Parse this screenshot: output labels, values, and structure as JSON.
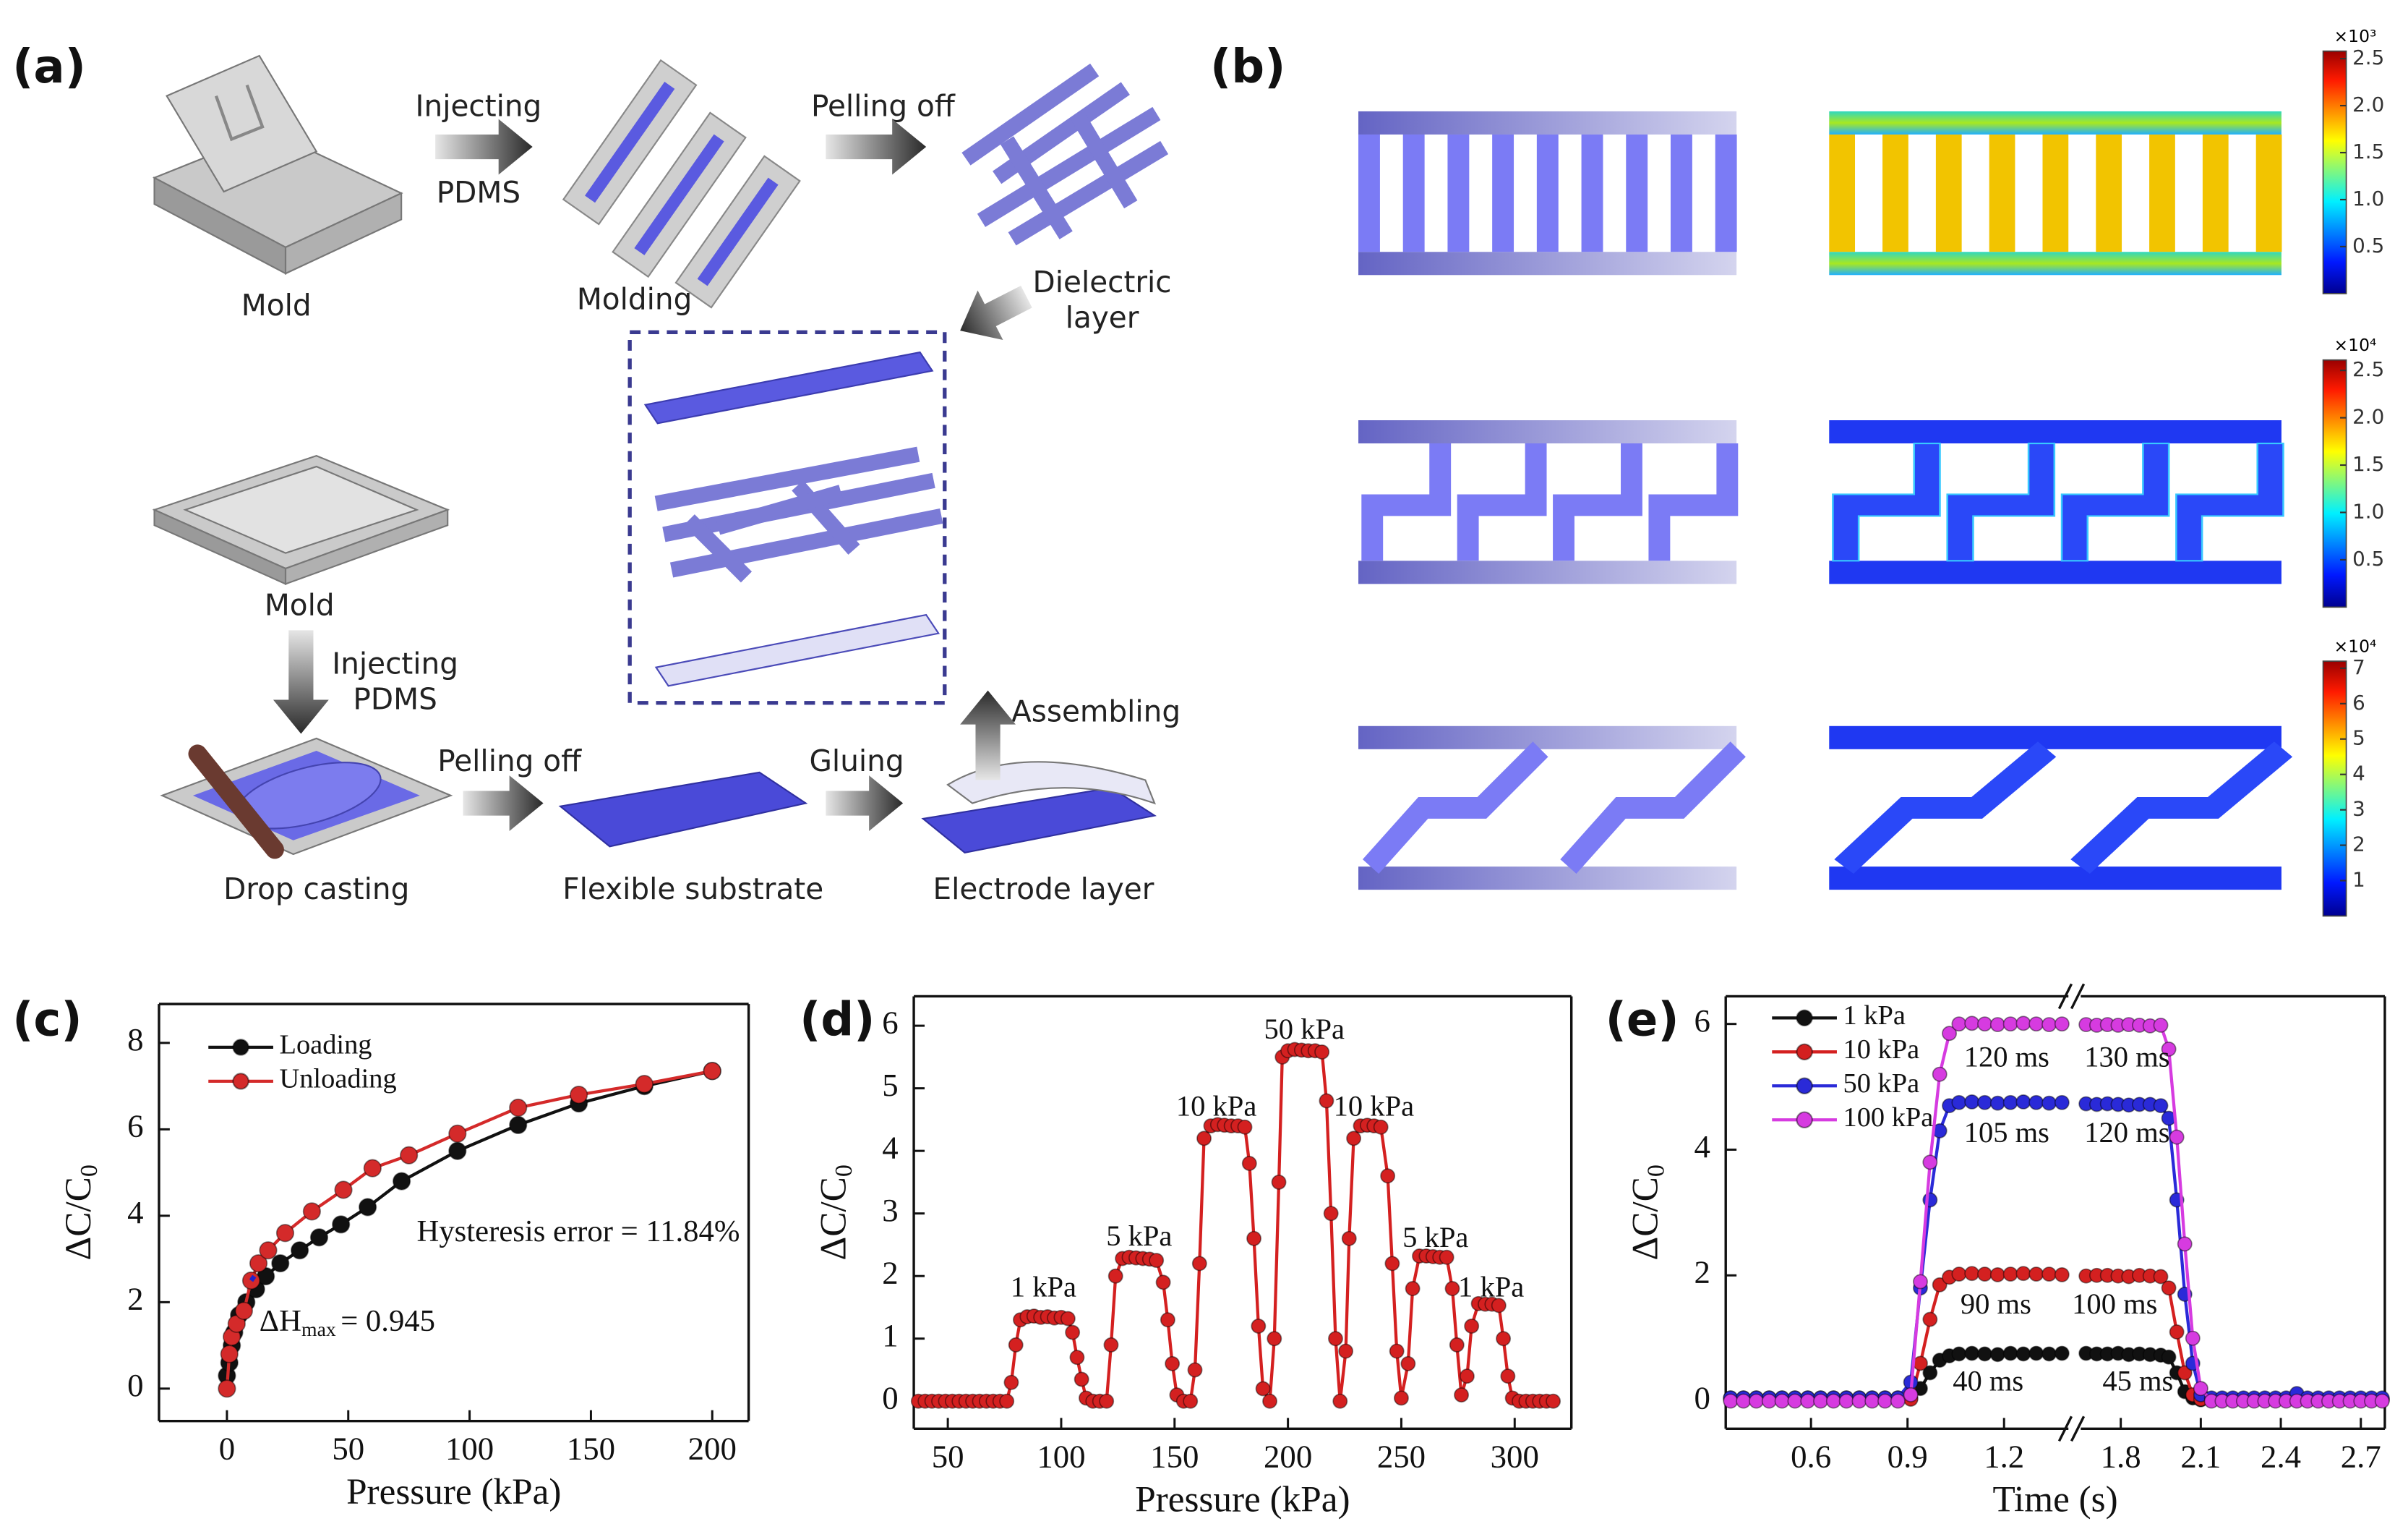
{
  "panels": [
    "(a)",
    "(b)",
    "(c)",
    "(d)",
    "(e)"
  ],
  "diagram_a": {
    "labels": [
      "Injecting",
      "PDMS",
      "Pelling off",
      "Mold",
      "Molding",
      "Dielectric",
      "layer",
      "Mold",
      "Injecting",
      "PDMS",
      "Assembling",
      "Pelling off",
      "Gluing",
      "Drop casting",
      "Flexible substrate",
      "Electrode layer"
    ]
  },
  "colorbars": [
    {
      "multiplier": "×10³",
      "lim": [
        0,
        2.58
      ],
      "ticks": [
        2.5,
        {
          "value": 2,
          "label": "2.0"
        },
        1.5,
        {
          "value": 1,
          "label": "1.0"
        },
        0.5
      ]
    },
    {
      "multiplier": "×10⁴",
      "lim": [
        0,
        2.61
      ],
      "ticks": [
        2.5,
        {
          "value": 2,
          "label": "2.0"
        },
        1.5,
        {
          "value": 1,
          "label": "1.0"
        },
        0.5
      ]
    },
    {
      "multiplier": "×10⁴",
      "lim": [
        0,
        7.2
      ],
      "ticks": [
        7,
        6,
        5,
        4,
        3,
        2,
        1
      ]
    }
  ],
  "chart_data": [
    {
      "type": "line",
      "xlabel": "Pressure (kPa)",
      "ylabel": "ΔC/C",
      "ylabel_sub": "0",
      "xlim": [
        -28,
        215
      ],
      "ylim": [
        -0.75,
        8.9
      ],
      "xticks": [
        0,
        50,
        100,
        150,
        200
      ],
      "yticks": [
        0,
        2,
        4,
        6,
        8
      ],
      "legend": "upper left",
      "series": [
        {
          "name": "Loading",
          "color": "#111111",
          "x": [
            0,
            1,
            2,
            3,
            5,
            8,
            12,
            16,
            22,
            30,
            38,
            47,
            58,
            72,
            95,
            120,
            145,
            172,
            200
          ],
          "values": [
            0.3,
            0.6,
            1.0,
            1.3,
            1.7,
            2.0,
            2.3,
            2.6,
            2.9,
            3.2,
            3.5,
            3.8,
            4.2,
            4.8,
            5.5,
            6.1,
            6.6,
            7.0,
            7.35
          ]
        },
        {
          "name": "Unloading",
          "color": "#d42a2a",
          "x": [
            0,
            1,
            2,
            4,
            7,
            10,
            13,
            17,
            24,
            35,
            48,
            60,
            75,
            95,
            120,
            145,
            172,
            200
          ],
          "values": [
            0,
            0.8,
            1.2,
            1.5,
            1.8,
            2.5,
            2.9,
            3.2,
            3.6,
            4.1,
            4.6,
            5.1,
            5.4,
            5.9,
            6.5,
            6.8,
            7.05,
            7.35
          ]
        }
      ],
      "annotations": [
        "Hysteresis error = 11.84%"
      ],
      "delta_h": {
        "symbol": "ΔH",
        "subscript": "max",
        "text": "= 0.945"
      }
    },
    {
      "type": "line",
      "xlabel": "Pressure (kPa)",
      "ylabel": "ΔC/C",
      "ylabel_sub": "0",
      "xlim": [
        35,
        325
      ],
      "ylim": [
        -0.44,
        6.47
      ],
      "xticks": [
        50,
        100,
        150,
        200,
        250,
        300
      ],
      "yticks": [
        0,
        1,
        2,
        3,
        4,
        5,
        6
      ],
      "x": [
        37,
        40,
        43,
        46,
        49,
        52,
        55,
        58,
        61,
        64,
        67,
        70,
        73,
        76,
        78,
        80,
        82,
        85,
        88,
        91,
        94,
        97,
        100,
        103,
        105,
        107,
        109,
        111,
        114,
        117,
        120,
        122,
        124,
        127,
        130,
        133,
        136,
        139,
        142,
        145,
        147,
        149,
        151,
        154,
        157,
        159,
        161,
        163,
        166,
        169,
        172,
        175,
        178,
        181,
        183,
        185,
        187,
        189,
        192,
        194,
        196,
        197.5,
        200,
        203,
        206,
        209,
        212,
        215,
        217,
        219,
        221,
        223,
        225.5,
        227,
        229,
        232,
        235,
        238,
        241,
        244,
        246,
        248,
        250,
        253,
        255,
        258,
        261,
        264,
        267,
        270,
        272.5,
        274.5,
        276.5,
        279,
        281,
        284,
        287,
        290,
        293,
        295,
        297,
        299,
        302,
        305,
        308,
        311,
        314,
        317
      ],
      "series": [
        {
          "color": "#d42020",
          "values": [
            0,
            0,
            0,
            0,
            0,
            0,
            0,
            0,
            0,
            0,
            0,
            0,
            0,
            0,
            0.3,
            0.9,
            1.3,
            1.35,
            1.36,
            1.34,
            1.35,
            1.33,
            1.34,
            1.32,
            1.1,
            0.7,
            0.35,
            0.05,
            0,
            0,
            0,
            0.9,
            2.0,
            2.28,
            2.3,
            2.29,
            2.28,
            2.27,
            2.25,
            1.9,
            1.3,
            0.6,
            0.1,
            0,
            0,
            0.5,
            2.2,
            4.2,
            4.4,
            4.42,
            4.41,
            4.4,
            4.4,
            4.38,
            3.8,
            2.6,
            1.2,
            0.2,
            0,
            1.0,
            3.5,
            5.5,
            5.6,
            5.62,
            5.61,
            5.6,
            5.6,
            5.58,
            4.8,
            3.0,
            1.0,
            0,
            0.8,
            2.6,
            4.2,
            4.4,
            4.41,
            4.4,
            4.38,
            3.6,
            2.2,
            0.8,
            0.05,
            0.6,
            1.8,
            2.32,
            2.32,
            2.31,
            2.3,
            2.3,
            1.8,
            0.9,
            0.1,
            0.4,
            1.2,
            1.56,
            1.55,
            1.55,
            1.53,
            1.0,
            0.4,
            0.05,
            0,
            0,
            0,
            0,
            0,
            0
          ]
        }
      ],
      "annotations": [
        "1 kPa",
        "5 kPa",
        "10 kPa",
        "50 kPa",
        "10 kPa",
        "5 kPa",
        "1 kPa"
      ]
    },
    {
      "type": "line",
      "xlabel": "Time (s)",
      "ylabel": "ΔC/C",
      "ylabel_sub": "0",
      "xlim_segments": [
        [
          0.335,
          1.4
        ],
        [
          1.65,
          2.79
        ]
      ],
      "ylim": [
        -0.44,
        6.44
      ],
      "xticks": [
        0.6,
        0.9,
        1.2,
        1.8,
        2.1,
        2.4,
        2.7
      ],
      "yticks": [
        0,
        2,
        4,
        6
      ],
      "legend": "upper left",
      "x": [
        0.35,
        0.39,
        0.43,
        0.47,
        0.51,
        0.55,
        0.59,
        0.63,
        0.67,
        0.71,
        0.75,
        0.79,
        0.83,
        0.87,
        0.91,
        0.94,
        0.97,
        1.0,
        1.03,
        1.06,
        1.1,
        1.14,
        1.18,
        1.22,
        1.26,
        1.3,
        1.34,
        1.38,
        1.67,
        1.71,
        1.75,
        1.79,
        1.83,
        1.87,
        1.91,
        1.95,
        1.98,
        2.01,
        2.04,
        2.07,
        2.1,
        2.14,
        2.18,
        2.22,
        2.26,
        2.3,
        2.34,
        2.38,
        2.42,
        2.46,
        2.5,
        2.54,
        2.58,
        2.62,
        2.66,
        2.7,
        2.74,
        2.78
      ],
      "series": [
        {
          "name": "1 kPa",
          "color": "#111111",
          "values": [
            0.05,
            0.05,
            0.05,
            0.05,
            0.05,
            0.05,
            0.05,
            0.05,
            0.05,
            0.05,
            0.05,
            0.05,
            0.05,
            0.05,
            0.05,
            0.2,
            0.45,
            0.65,
            0.72,
            0.75,
            0.76,
            0.75,
            0.74,
            0.76,
            0.75,
            0.76,
            0.75,
            0.76,
            0.76,
            0.75,
            0.75,
            0.76,
            0.74,
            0.75,
            0.74,
            0.73,
            0.7,
            0.45,
            0.15,
            0.05,
            0.02,
            0.02,
            0.02,
            0.02,
            0.02,
            0.02,
            0.02,
            0.02,
            0.02,
            0.02,
            0.02,
            0.02,
            0.02,
            0.02,
            0.02,
            0.02,
            0.02,
            0.02
          ]
        },
        {
          "name": "10 kPa",
          "color": "#d42020",
          "values": [
            0.03,
            0.03,
            0.03,
            0.03,
            0.03,
            0.03,
            0.03,
            0.03,
            0.03,
            0.03,
            0.03,
            0.03,
            0.03,
            0.03,
            0.03,
            0.6,
            1.3,
            1.85,
            1.97,
            2.02,
            2.03,
            2.02,
            2.01,
            2.02,
            2.03,
            2.02,
            2.02,
            2.01,
            1.99,
            2.0,
            2.0,
            1.99,
            1.98,
            2.0,
            1.99,
            1.98,
            1.8,
            1.1,
            0.45,
            0.1,
            0.03,
            0.03,
            0.03,
            0.03,
            0.03,
            0.03,
            0.03,
            0.03,
            0.03,
            0.03,
            0.03,
            0.03,
            0.03,
            0.03,
            0.03,
            0.03,
            0.03,
            0.03
          ]
        },
        {
          "name": "50 kPa",
          "color": "#2a2ad8",
          "values": [
            0.05,
            0.05,
            0.05,
            0.05,
            0.05,
            0.05,
            0.05,
            0.05,
            0.05,
            0.05,
            0.05,
            0.05,
            0.05,
            0.05,
            0.3,
            1.8,
            3.2,
            4.3,
            4.7,
            4.75,
            4.76,
            4.75,
            4.74,
            4.75,
            4.76,
            4.75,
            4.74,
            4.75,
            4.73,
            4.72,
            4.73,
            4.72,
            4.71,
            4.72,
            4.72,
            4.7,
            4.5,
            3.2,
            1.7,
            0.6,
            0.1,
            0.05,
            0.05,
            0.05,
            0.05,
            0.05,
            0.05,
            0.05,
            0.05,
            0.12,
            0.05,
            0.05,
            0.05,
            0.05,
            0.05,
            0.05,
            0.05,
            0.05
          ]
        },
        {
          "name": "100 kPa",
          "color": "#d63be0",
          "values": [
            0,
            0,
            0,
            0,
            0,
            0,
            0,
            0,
            0,
            0,
            0,
            0,
            0,
            0,
            0.1,
            1.9,
            3.8,
            5.2,
            5.85,
            6.0,
            6.01,
            6.0,
            5.99,
            6.0,
            6.01,
            6.0,
            5.99,
            6.0,
            5.99,
            5.98,
            5.99,
            5.98,
            5.99,
            5.98,
            5.97,
            5.98,
            5.6,
            4.2,
            2.5,
            1.0,
            0.2,
            0,
            0,
            0,
            0,
            0,
            0,
            0,
            0,
            0,
            0,
            0,
            0,
            0,
            0,
            0,
            0,
            0
          ]
        }
      ],
      "annotations": [
        "120 ms",
        "130 ms",
        "105 ms",
        "120 ms",
        "90 ms",
        "100 ms",
        "40 ms",
        "45 ms"
      ]
    }
  ]
}
